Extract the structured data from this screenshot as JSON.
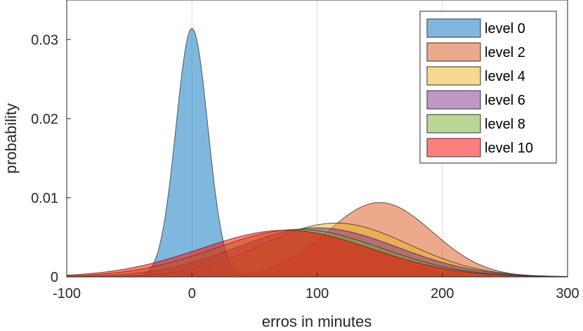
{
  "chart_data": {
    "type": "area",
    "title": "",
    "xlabel": "erros in minutes",
    "ylabel": "probability",
    "xlim": [
      -100,
      300
    ],
    "ylim": [
      0,
      0.035
    ],
    "xticks": [
      -100,
      0,
      100,
      200,
      300
    ],
    "xtick_labels": [
      "-100",
      "0",
      "100",
      "200",
      "300"
    ],
    "yticks": [
      0,
      0.01,
      0.02,
      0.03
    ],
    "ytick_labels": [
      "0",
      "0.01",
      "0.02",
      "0.03"
    ],
    "grid": "vertical",
    "legend_position": "top-right",
    "series": [
      {
        "name": "level 0",
        "color": "#0072BD",
        "mean": 0,
        "std": 12.7,
        "peak": 0.0314
      },
      {
        "name": "level 2",
        "color": "#D95319",
        "mean": 150,
        "std": 42,
        "peak": 0.0094
      },
      {
        "name": "level 4",
        "color": "#EDB120",
        "mean": 115,
        "std": 58,
        "peak": 0.0068
      },
      {
        "name": "level 6",
        "color": "#7E2F8E",
        "mean": 100,
        "std": 64,
        "peak": 0.0062
      },
      {
        "name": "level 8",
        "color": "#77AC30",
        "mean": 85,
        "std": 66,
        "peak": 0.006
      },
      {
        "name": "level 10",
        "color": "#FF0000",
        "mean": 75,
        "std": 68,
        "peak": 0.0059
      }
    ]
  }
}
